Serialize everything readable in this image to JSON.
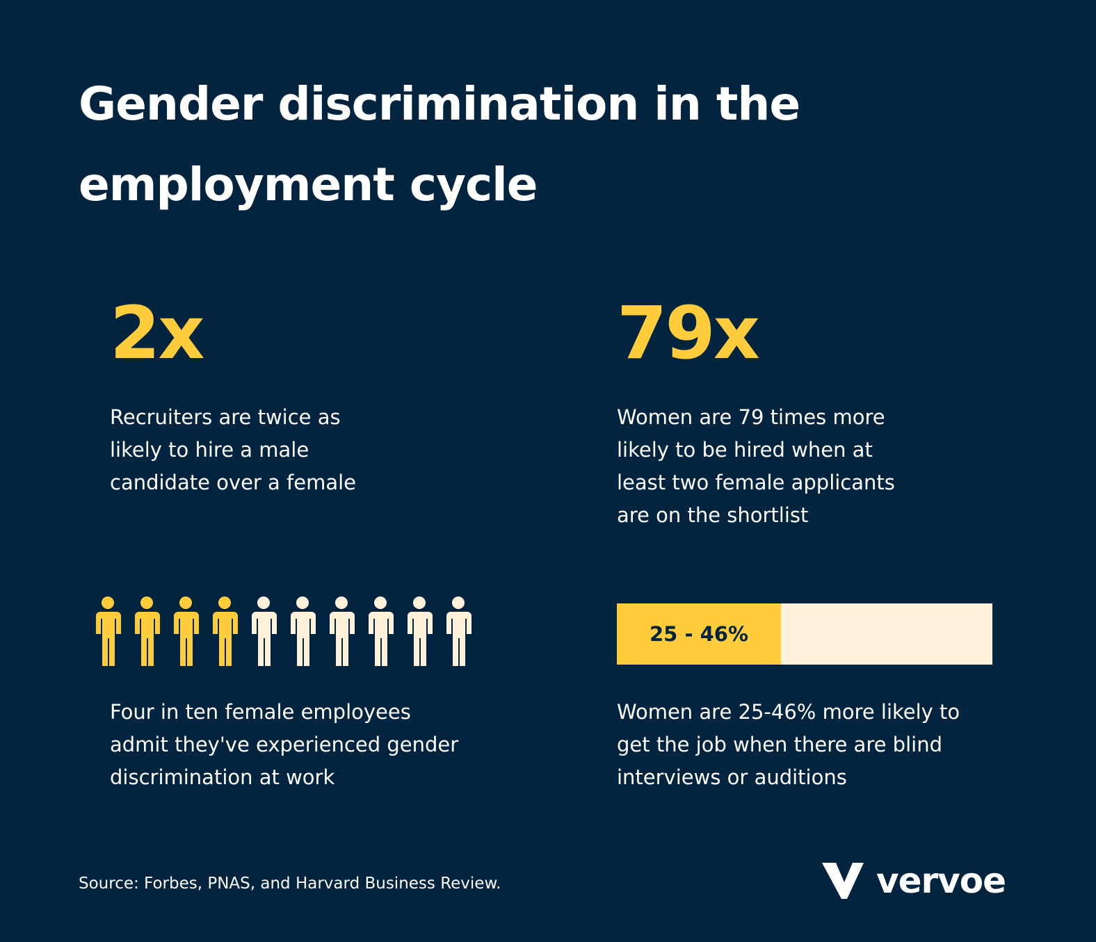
{
  "title": "Gender discrimination in the employment cycle",
  "stats": [
    {
      "figure": "2x",
      "description": [
        "Recruiters are twice as",
        "likely to hire a male",
        "candidate over a female"
      ]
    },
    {
      "figure": "79x",
      "description": [
        "Women are 79 times more",
        "likely to be hired when at",
        "least two female applicants",
        "are on the shortlist"
      ]
    },
    {
      "pictogram": {
        "filled": 4,
        "total": 10
      },
      "description": [
        "Four in ten female employees",
        "admit they've experienced gender",
        "discrimination at work"
      ]
    },
    {
      "bar_label": "25 - 46%",
      "description": [
        "Women are 25-46% more likely to",
        "get the job when there are blind",
        "interviews or auditions"
      ]
    }
  ],
  "source": "Source: Forbes, PNAS, and Harvard Business Review.",
  "logo": "vervoe"
}
